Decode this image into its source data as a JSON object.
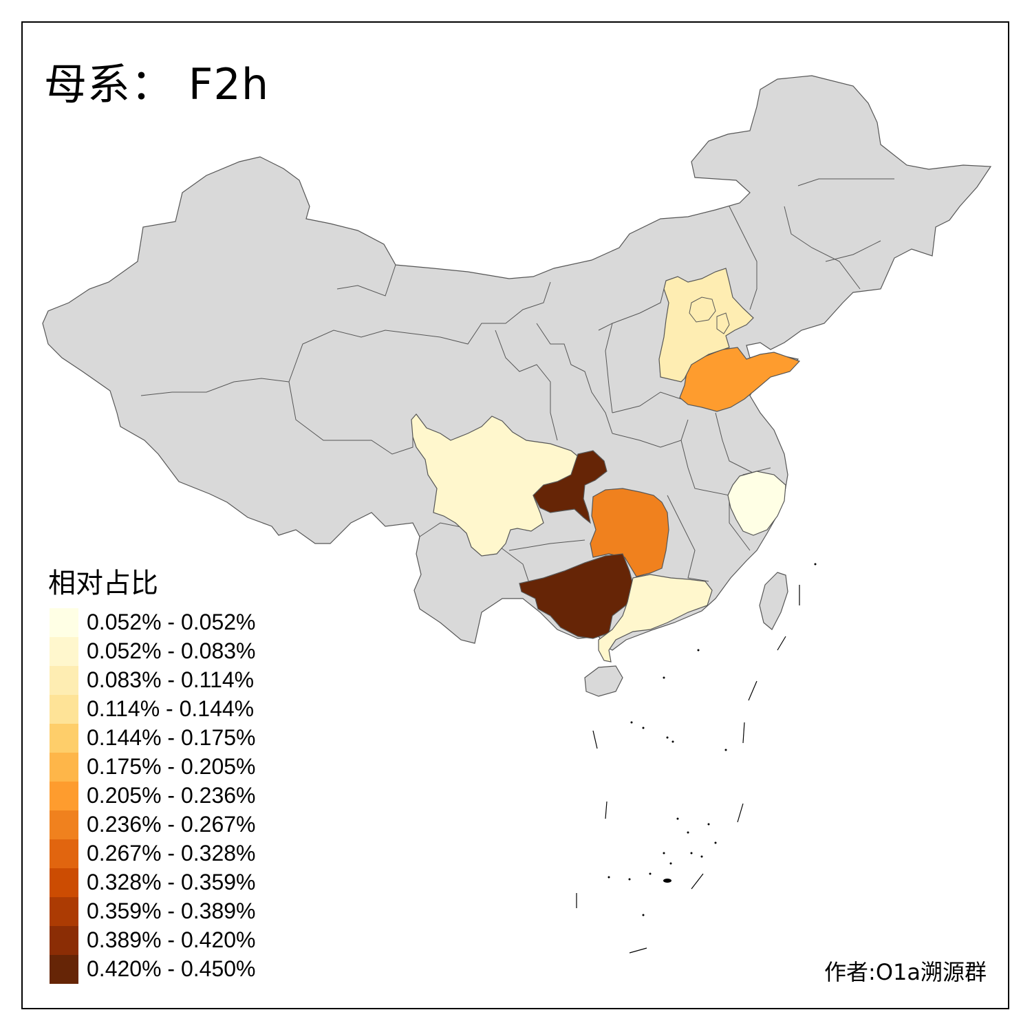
{
  "title": "母系： F2h",
  "legend": {
    "title": "相对占比",
    "items": [
      {
        "label": "0.052% - 0.052%",
        "color": "#ffffe5"
      },
      {
        "label": "0.052% - 0.083%",
        "color": "#fff7cd"
      },
      {
        "label": "0.083% - 0.114%",
        "color": "#feedb2"
      },
      {
        "label": "0.114% - 0.144%",
        "color": "#fee397"
      },
      {
        "label": "0.144% - 0.175%",
        "color": "#fece6a"
      },
      {
        "label": "0.175% - 0.205%",
        "color": "#feb649"
      },
      {
        "label": "0.205% - 0.236%",
        "color": "#fe9c2e"
      },
      {
        "label": "0.236% - 0.267%",
        "color": "#f0811e"
      },
      {
        "label": "0.267% - 0.328%",
        "color": "#e1650f"
      },
      {
        "label": "0.328% - 0.359%",
        "color": "#cc4c02"
      },
      {
        "label": "0.359% - 0.389%",
        "color": "#ac3b03"
      },
      {
        "label": "0.389% - 0.420%",
        "color": "#8b2d05"
      },
      {
        "label": "0.420% - 0.450%",
        "color": "#662506"
      }
    ]
  },
  "author": "作者:O1a溯源群",
  "map": {
    "base_color": "#d9d9d9",
    "highlighted_regions": [
      {
        "name": "Guangxi",
        "color": "#662506"
      },
      {
        "name": "Chongqing",
        "color": "#662506"
      },
      {
        "name": "Hunan",
        "color": "#f0811e"
      },
      {
        "name": "Shandong",
        "color": "#fe9c2e"
      },
      {
        "name": "Hebei",
        "color": "#feedb2"
      },
      {
        "name": "Sichuan",
        "color": "#fff7cd"
      },
      {
        "name": "Guangdong",
        "color": "#fff7cd"
      },
      {
        "name": "Zhejiang",
        "color": "#ffffe5"
      }
    ]
  }
}
